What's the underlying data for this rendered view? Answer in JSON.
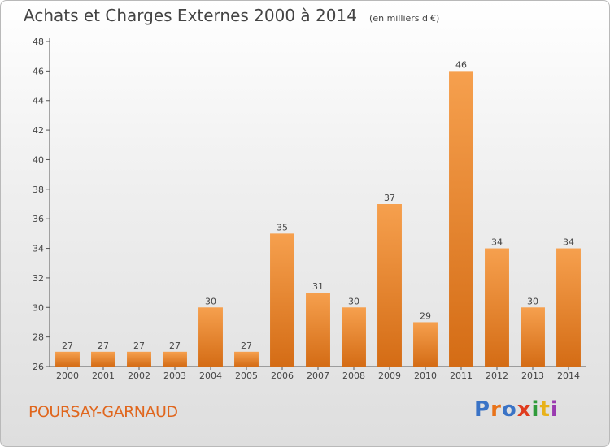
{
  "header": {
    "title": "Achats et Charges Externes 2000 à 2014",
    "unit": "(en milliers d'€)"
  },
  "footer": {
    "location": "POURSAY-GARNAUD",
    "logo": "Proxiti",
    "logo_colors": [
      "#3a73c6",
      "#e8731a",
      "#3a73c6",
      "#e03c1f",
      "#2f9b3a",
      "#e8b21a",
      "#9a3ab0"
    ]
  },
  "colors": {
    "bar_light": "#f6a04e",
    "bar_dark": "#d46c15",
    "axis": "#555555",
    "grid": "#cccccc"
  },
  "chart_data": {
    "type": "bar",
    "categories": [
      "2000",
      "2001",
      "2002",
      "2003",
      "2004",
      "2005",
      "2006",
      "2007",
      "2008",
      "2009",
      "2010",
      "2011",
      "2012",
      "2013",
      "2014"
    ],
    "values": [
      27,
      27,
      27,
      27,
      30,
      27,
      35,
      31,
      30,
      37,
      29,
      46,
      34,
      30,
      34
    ],
    "title": "Achats et Charges Externes 2000 à 2014",
    "subtitle": "(en milliers d'€)",
    "ylim": [
      26,
      48
    ],
    "yticks": [
      26,
      28,
      30,
      32,
      34,
      36,
      38,
      40,
      42,
      44,
      46,
      48
    ],
    "grid": false,
    "data_labels": true
  }
}
